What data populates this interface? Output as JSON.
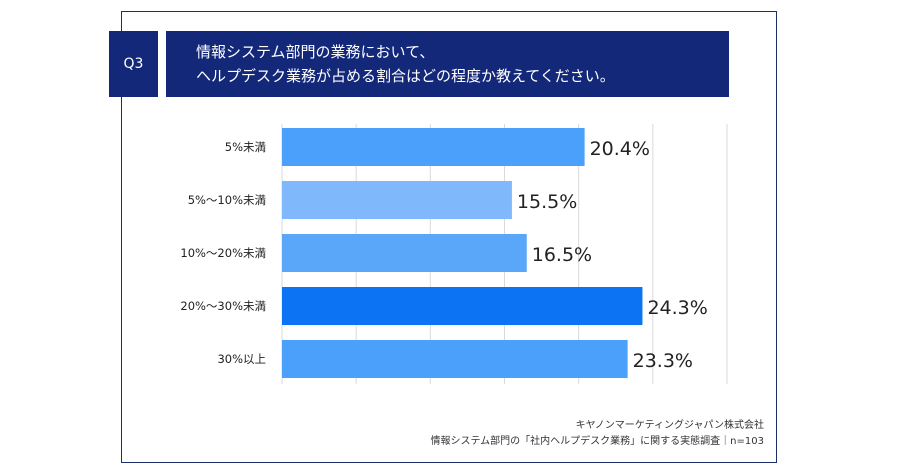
{
  "question": {
    "badge": "Q3",
    "title_line1": "情報システム部門の業務において、",
    "title_line2": "ヘルプデスク業務が占める割合はどの程度か教えてください。"
  },
  "footer": {
    "company": "キヤノンマーケティングジャパン株式会社",
    "survey": "情報システム部門の「社内ヘルプデスク業務」に関する実態調査｜n=103"
  },
  "chart_data": {
    "type": "bar",
    "orientation": "horizontal",
    "categories": [
      "5%未満",
      "5%〜10%未満",
      "10%〜20%未満",
      "20%〜30%未満",
      "30%以上"
    ],
    "values": [
      20.4,
      15.5,
      16.5,
      24.3,
      23.3
    ],
    "value_labels": [
      "20.4%",
      "15.5%",
      "16.5%",
      "24.3%",
      "23.3%"
    ],
    "colors": [
      "#4aa0fb",
      "#80b9fb",
      "#5aa6f8",
      "#0c74f2",
      "#4aa0fb"
    ],
    "xlim": [
      0,
      30
    ],
    "grid": true
  }
}
